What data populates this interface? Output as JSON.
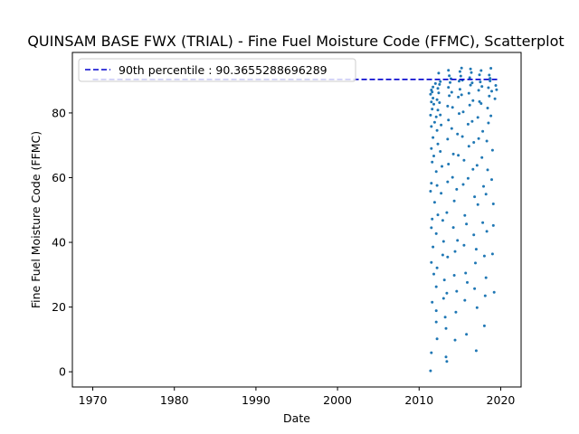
{
  "chart_data": {
    "type": "scatter",
    "title": "QUINSAM BASE FWX (TRIAL) - Fine Fuel Moisture Code (FFMC), Scatterplot",
    "xlabel": "Date",
    "ylabel": "Fine Fuel Moisture Code (FFMC)",
    "xlim": [
      1967.5,
      2022.5
    ],
    "ylim": [
      -4.7,
      98.7
    ],
    "xticks": [
      1970,
      1980,
      1990,
      2000,
      2010,
      2020
    ],
    "yticks": [
      0,
      20,
      40,
      60,
      80
    ],
    "xtick_labels": [
      "1970",
      "1980",
      "1990",
      "2000",
      "2010",
      "2020"
    ],
    "ytick_labels": [
      "0",
      "20",
      "40",
      "60",
      "80"
    ],
    "point_color": "#1f77b4",
    "reference_line": {
      "label": "90th percentile : 90.3655288696289",
      "value": 90.3655288696289,
      "x_start": 1970,
      "x_end": 2019.7,
      "color": "#0000cd",
      "style": "dashed"
    },
    "legend_position": "top-left",
    "points": [
      [
        2011.4,
        0.3
      ],
      [
        2011.5,
        5.9
      ],
      [
        2011.6,
        21.5
      ],
      [
        2011.5,
        33.8
      ],
      [
        2011.7,
        38.6
      ],
      [
        2011.5,
        44.5
      ],
      [
        2011.6,
        47.2
      ],
      [
        2011.4,
        55.8
      ],
      [
        2011.5,
        58.3
      ],
      [
        2011.6,
        64.8
      ],
      [
        2011.5,
        69.0
      ],
      [
        2011.7,
        72.4
      ],
      [
        2011.5,
        75.8
      ],
      [
        2011.4,
        79.3
      ],
      [
        2011.6,
        81.2
      ],
      [
        2011.5,
        83.4
      ],
      [
        2011.7,
        84.6
      ],
      [
        2011.4,
        85.8
      ],
      [
        2011.6,
        86.5
      ],
      [
        2011.5,
        87.1
      ],
      [
        2011.7,
        88.0
      ],
      [
        2011.8,
        30.2
      ],
      [
        2011.9,
        52.4
      ],
      [
        2011.8,
        66.7
      ],
      [
        2011.9,
        77.1
      ],
      [
        2011.8,
        82.7
      ],
      [
        2012.0,
        89.1
      ],
      [
        2012.1,
        15.4
      ],
      [
        2012.1,
        18.9
      ],
      [
        2012.2,
        10.2
      ],
      [
        2012.1,
        26.3
      ],
      [
        2012.2,
        32.1
      ],
      [
        2012.1,
        42.7
      ],
      [
        2012.3,
        48.5
      ],
      [
        2012.2,
        57.6
      ],
      [
        2012.1,
        61.9
      ],
      [
        2012.3,
        70.4
      ],
      [
        2012.2,
        74.6
      ],
      [
        2012.1,
        78.8
      ],
      [
        2012.3,
        80.9
      ],
      [
        2012.2,
        84.1
      ],
      [
        2012.4,
        86.2
      ],
      [
        2012.3,
        87.6
      ],
      [
        2012.5,
        88.8
      ],
      [
        2012.4,
        92.3
      ],
      [
        2012.6,
        89.7
      ],
      [
        2012.5,
        83.2
      ],
      [
        2012.6,
        79.4
      ],
      [
        2012.7,
        76.3
      ],
      [
        2012.6,
        68.1
      ],
      [
        2012.8,
        63.5
      ],
      [
        2012.7,
        55.2
      ],
      [
        2012.9,
        46.8
      ],
      [
        2013.0,
        40.3
      ],
      [
        2012.9,
        36.1
      ],
      [
        2013.1,
        28.4
      ],
      [
        2013.0,
        22.7
      ],
      [
        2013.2,
        16.9
      ],
      [
        2013.3,
        13.4
      ],
      [
        2013.4,
        3.2
      ],
      [
        2013.3,
        4.6
      ],
      [
        2013.4,
        24.3
      ],
      [
        2013.5,
        35.5
      ],
      [
        2013.4,
        49.2
      ],
      [
        2013.5,
        58.7
      ],
      [
        2013.6,
        64.2
      ],
      [
        2013.5,
        71.9
      ],
      [
        2013.6,
        77.8
      ],
      [
        2013.5,
        82.1
      ],
      [
        2013.7,
        85.3
      ],
      [
        2013.6,
        87.9
      ],
      [
        2013.8,
        89.4
      ],
      [
        2013.7,
        91.5
      ],
      [
        2013.6,
        93.2
      ],
      [
        2013.9,
        90.6
      ],
      [
        2014.0,
        86.4
      ],
      [
        2014.1,
        81.7
      ],
      [
        2014.0,
        75.2
      ],
      [
        2014.2,
        67.3
      ],
      [
        2014.1,
        60.1
      ],
      [
        2014.3,
        52.8
      ],
      [
        2014.2,
        44.6
      ],
      [
        2014.4,
        37.2
      ],
      [
        2014.3,
        29.8
      ],
      [
        2014.5,
        18.4
      ],
      [
        2014.4,
        9.8
      ],
      [
        2014.6,
        24.9
      ],
      [
        2014.7,
        40.6
      ],
      [
        2014.6,
        56.4
      ],
      [
        2014.8,
        66.9
      ],
      [
        2014.7,
        73.5
      ],
      [
        2014.9,
        79.8
      ],
      [
        2014.8,
        84.9
      ],
      [
        2015.0,
        87.3
      ],
      [
        2014.9,
        89.8
      ],
      [
        2015.1,
        91.4
      ],
      [
        2015.0,
        92.8
      ],
      [
        2015.2,
        93.9
      ],
      [
        2015.3,
        90.1
      ],
      [
        2015.2,
        85.6
      ],
      [
        2015.4,
        80.3
      ],
      [
        2015.3,
        72.7
      ],
      [
        2015.5,
        65.4
      ],
      [
        2015.4,
        57.9
      ],
      [
        2015.6,
        48.3
      ],
      [
        2015.5,
        39.1
      ],
      [
        2015.7,
        30.5
      ],
      [
        2015.6,
        22.1
      ],
      [
        2015.8,
        11.6
      ],
      [
        2015.9,
        27.6
      ],
      [
        2015.8,
        45.7
      ],
      [
        2016.0,
        59.8
      ],
      [
        2016.1,
        69.7
      ],
      [
        2016.0,
        76.5
      ],
      [
        2016.2,
        82.4
      ],
      [
        2016.1,
        86.1
      ],
      [
        2016.3,
        88.6
      ],
      [
        2016.2,
        90.9
      ],
      [
        2016.4,
        92.5
      ],
      [
        2016.3,
        93.6
      ],
      [
        2016.5,
        89.3
      ],
      [
        2016.6,
        83.8
      ],
      [
        2016.5,
        77.4
      ],
      [
        2016.7,
        70.9
      ],
      [
        2016.6,
        62.6
      ],
      [
        2016.8,
        54.1
      ],
      [
        2016.7,
        42.3
      ],
      [
        2016.9,
        33.6
      ],
      [
        2016.8,
        25.7
      ],
      [
        2017.0,
        6.5
      ],
      [
        2017.1,
        19.8
      ],
      [
        2017.0,
        37.9
      ],
      [
        2017.2,
        51.7
      ],
      [
        2017.1,
        63.8
      ],
      [
        2017.3,
        72.1
      ],
      [
        2017.2,
        78.6
      ],
      [
        2017.4,
        83.5
      ],
      [
        2017.3,
        87.0
      ],
      [
        2017.5,
        89.6
      ],
      [
        2017.4,
        91.8
      ],
      [
        2017.6,
        93.1
      ],
      [
        2017.7,
        88.2
      ],
      [
        2017.6,
        82.9
      ],
      [
        2017.8,
        74.3
      ],
      [
        2017.7,
        66.2
      ],
      [
        2017.9,
        57.3
      ],
      [
        2017.8,
        46.1
      ],
      [
        2018.0,
        35.8
      ],
      [
        2018.1,
        23.5
      ],
      [
        2018.0,
        14.2
      ],
      [
        2018.2,
        29.1
      ],
      [
        2018.3,
        43.4
      ],
      [
        2018.2,
        54.9
      ],
      [
        2018.4,
        62.4
      ],
      [
        2018.3,
        71.3
      ],
      [
        2018.5,
        76.9
      ],
      [
        2018.4,
        81.5
      ],
      [
        2018.6,
        85.2
      ],
      [
        2018.5,
        87.8
      ],
      [
        2018.7,
        89.9
      ],
      [
        2018.6,
        91.7
      ],
      [
        2018.8,
        93.8
      ],
      [
        2018.7,
        90.7
      ],
      [
        2018.9,
        86.7
      ],
      [
        2018.8,
        79.1
      ],
      [
        2019.0,
        68.5
      ],
      [
        2018.9,
        59.4
      ],
      [
        2019.1,
        45.2
      ],
      [
        2019.0,
        36.4
      ],
      [
        2019.2,
        24.6
      ],
      [
        2019.1,
        51.9
      ],
      [
        2019.3,
        84.4
      ],
      [
        2019.4,
        88.5
      ],
      [
        2019.5,
        87.2
      ]
    ]
  }
}
